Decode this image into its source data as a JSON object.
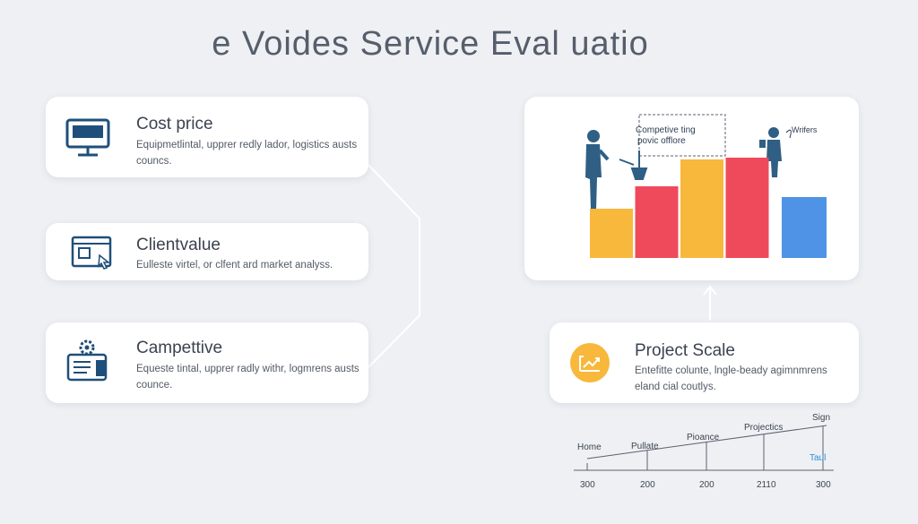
{
  "title": "e Voides Service Eval uatio",
  "cards": {
    "cost": {
      "title": "Cost price",
      "desc": "Equipmetlintal, upprer redly lador, logistics austs councs.",
      "icon": "monitor-icon"
    },
    "client": {
      "title": "Clientvalue",
      "desc": "Eulleste virtel, or clfent ard market analyss.",
      "icon": "browser-cursor-icon"
    },
    "competitive": {
      "title": "Campettive",
      "desc": "Equeste tintal, upprer radly withr, logmrens austs counce.",
      "icon": "gear-document-icon"
    },
    "project_scale": {
      "title": "Project Scale",
      "desc": "Entefitte colunte, lngle-bеady agimnmrens eland cial coutlys.",
      "icon": "scale-chart-icon"
    }
  },
  "illustration": {
    "callout_left": "Competive ting povic offlore",
    "callout_right": "Wrifers"
  },
  "chart_data": {
    "type": "bar",
    "categories": [
      "",
      "",
      "",
      "",
      ""
    ],
    "values": [
      55,
      80,
      110,
      112,
      68
    ],
    "colors": [
      "#f7b83c",
      "#ef4a5b",
      "#f7b83c",
      "#ef4a5b",
      "#4f93e6"
    ],
    "ylim": [
      0,
      120
    ]
  },
  "scale_line": {
    "labels": [
      "Home",
      "Pullate",
      "Pioance",
      "Projectics",
      "Sign"
    ],
    "end_label": "Taul",
    "ticks": [
      "300",
      "200",
      "200",
      "2110",
      "300"
    ]
  },
  "colors": {
    "accent_yellow": "#f7b83c",
    "accent_red": "#ef4a5b",
    "accent_blue": "#4f93e6",
    "icon_navy": "#1e4f7a"
  }
}
